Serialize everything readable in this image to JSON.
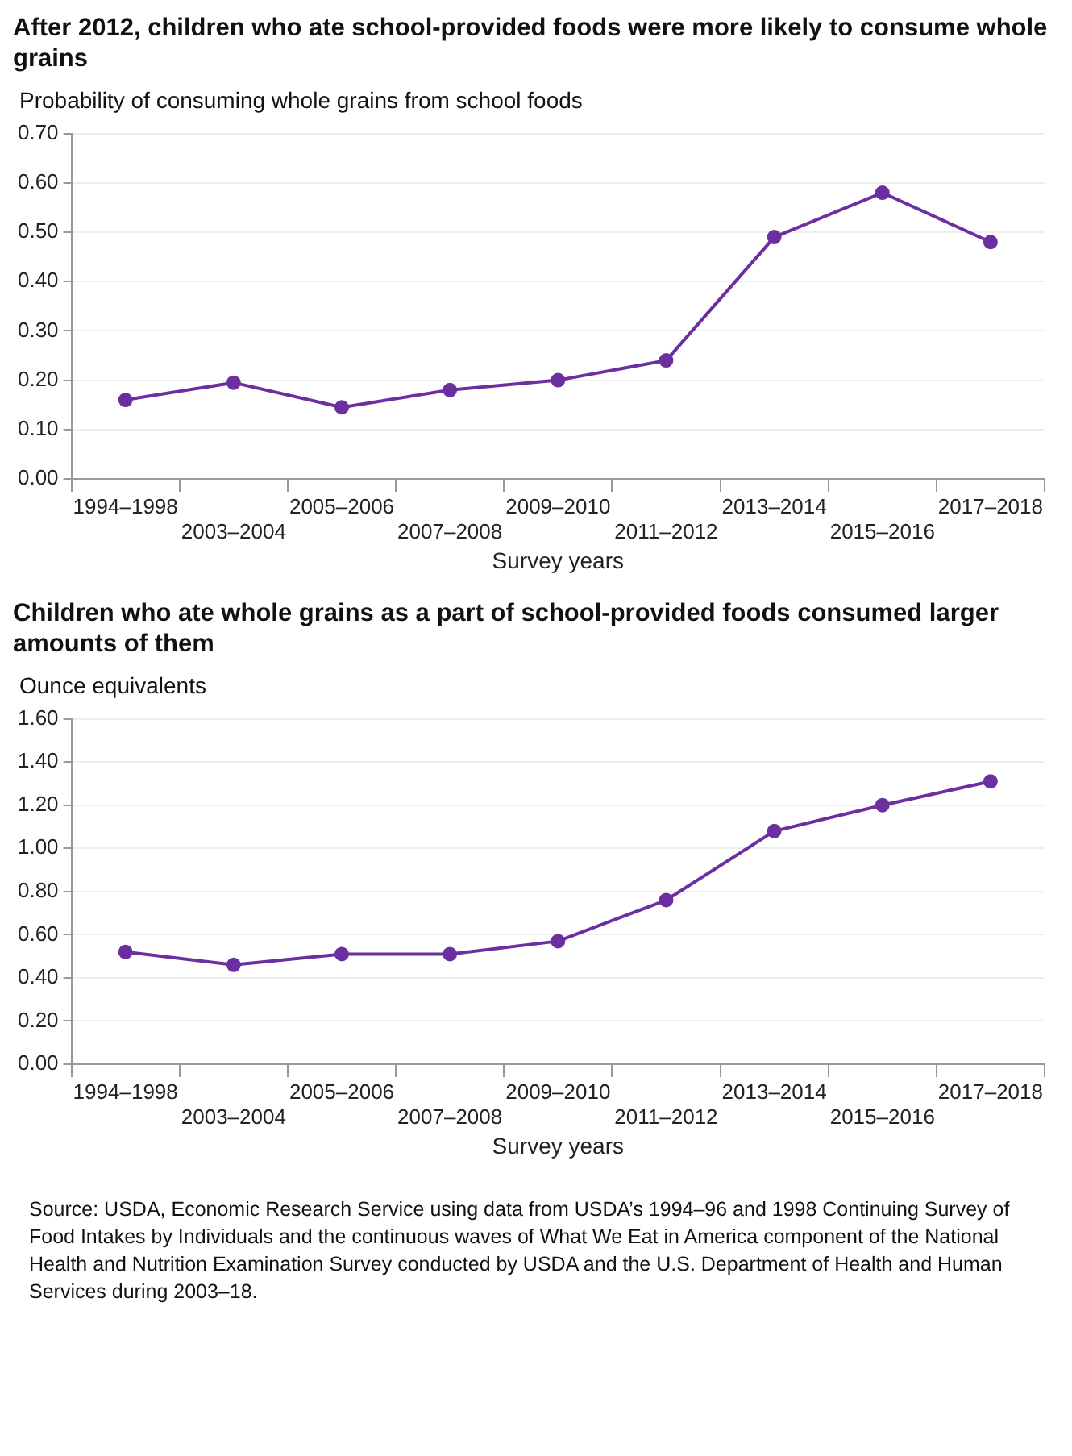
{
  "chart_data": [
    {
      "type": "line",
      "title": "After 2012, children who ate school-provided foods were more likely to consume whole grains",
      "ylabel": "Probability of consuming whole grains from school foods",
      "xlabel": "Survey years",
      "categories": [
        "1994–1998",
        "2003–2004",
        "2005–2006",
        "2007–2008",
        "2009–2010",
        "2011–2012",
        "2013–2014",
        "2015–2016",
        "2017–2018"
      ],
      "series": [
        {
          "color": "#6b2fa0",
          "values": [
            0.16,
            0.195,
            0.145,
            0.18,
            0.2,
            0.24,
            0.49,
            0.58,
            0.48
          ]
        }
      ],
      "ylim": [
        0,
        0.7
      ],
      "yticks": [
        {
          "value": 0,
          "label": "0.00"
        },
        {
          "value": 0.1,
          "label": "0.10"
        },
        {
          "value": 0.2,
          "label": "0.20"
        },
        {
          "value": 0.3,
          "label": "0.30"
        },
        {
          "value": 0.4,
          "label": "0.40"
        },
        {
          "value": 0.5,
          "label": "0.50"
        },
        {
          "value": 0.6,
          "label": "0.60"
        },
        {
          "value": 0.7,
          "label": "0.70"
        }
      ],
      "grid": "y",
      "marker": "circle",
      "line_style": "solid"
    },
    {
      "type": "line",
      "title": "Children who ate whole grains as a part of school-provided foods consumed larger amounts of them",
      "ylabel": "Ounce equivalents",
      "xlabel": "Survey years",
      "categories": [
        "1994–1998",
        "2003–2004",
        "2005–2006",
        "2007–2008",
        "2009–2010",
        "2011–2012",
        "2013–2014",
        "2015–2016",
        "2017–2018"
      ],
      "series": [
        {
          "color": "#6b2fa0",
          "values": [
            0.52,
            0.46,
            0.51,
            0.51,
            0.57,
            0.76,
            1.08,
            1.2,
            1.31
          ]
        }
      ],
      "ylim": [
        0,
        1.6
      ],
      "yticks": [
        {
          "value": 0,
          "label": "0.00"
        },
        {
          "value": 0.2,
          "label": "0.20"
        },
        {
          "value": 0.4,
          "label": "0.40"
        },
        {
          "value": 0.6,
          "label": "0.60"
        },
        {
          "value": 0.8,
          "label": "0.80"
        },
        {
          "value": 1.0,
          "label": "1.00"
        },
        {
          "value": 1.2,
          "label": "1.20"
        },
        {
          "value": 1.4,
          "label": "1.40"
        },
        {
          "value": 1.6,
          "label": "1.60"
        }
      ],
      "grid": "y",
      "marker": "circle",
      "line_style": "solid",
      "annotations": [
        "Source: USDA, Economic Research Service using data from USDA’s 1994–96 and 1998 Continuing Survey of Food Intakes by Individuals and the continuous waves of What We Eat in America component of the National Health and Nutrition Examination Survey conducted by USDA and the U.S. Department of Health and Human Services during 2003–18."
      ]
    }
  ]
}
